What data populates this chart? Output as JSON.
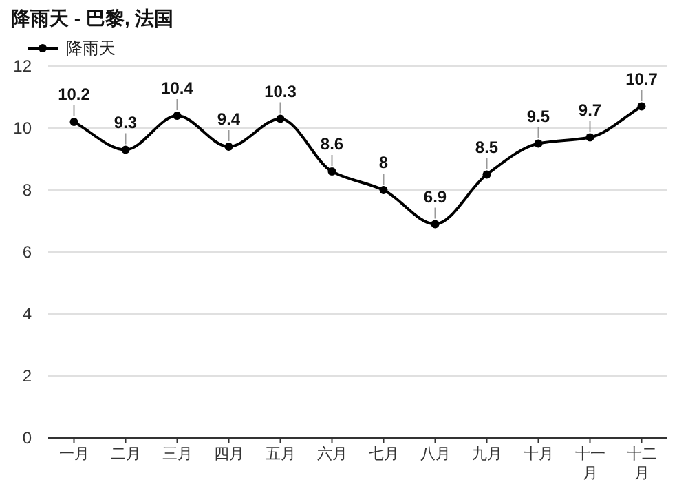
{
  "chart_data": {
    "type": "line",
    "title": "降雨天 - 巴黎, 法国",
    "categories": [
      "一月",
      "二月",
      "三月",
      "四月",
      "五月",
      "六月",
      "七月",
      "八月",
      "九月",
      "十月",
      "十一月",
      "十二月"
    ],
    "series": [
      {
        "name": "降雨天",
        "color": "#000000",
        "values": [
          10.2,
          9.3,
          10.4,
          9.4,
          10.3,
          8.6,
          8,
          6.9,
          8.5,
          9.5,
          9.7,
          10.7
        ]
      }
    ],
    "ylim": [
      0,
      12
    ],
    "yticks": [
      0,
      2,
      4,
      6,
      8,
      10,
      12
    ],
    "grid": "y",
    "legend": "top left",
    "marker": "circle",
    "line_style": "solid",
    "data_labels": true
  }
}
